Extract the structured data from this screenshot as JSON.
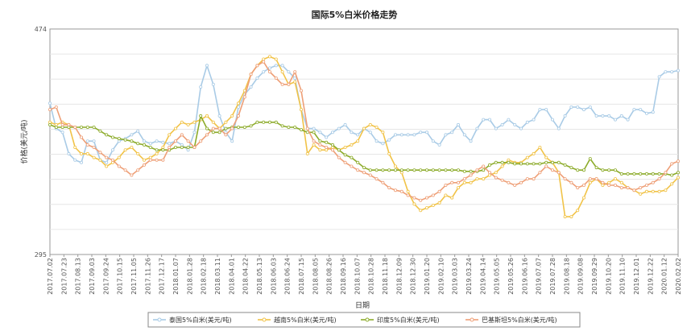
{
  "chart_data": {
    "type": "line",
    "title": "国际5%白米价格走势",
    "xlabel": "日期",
    "ylabel": "价格(美元/吨)",
    "ylim": [
      295,
      474
    ],
    "y_ticks": [
      "474",
      "295"
    ],
    "grid": true,
    "legend_position": "bottom",
    "x_tick_labels": [
      "2017.07.02",
      "2017.07.23",
      "2017.08.13",
      "2017.09.03",
      "2017.09.24",
      "2017.10.15",
      "2017.11.05",
      "2017.11.26",
      "2017.12.17",
      "2018.01.07",
      "2018.01.28",
      "2018.02.18",
      "2018.03.11",
      "2018.04.01",
      "2018.04.22",
      "2018.05.13",
      "2018.06.03",
      "2018.06.24",
      "2018.07.15",
      "2018.08.05",
      "2018.08.26",
      "2018.09.16",
      "2018.10.07",
      "2018.10.28",
      "2018.11.18",
      "2018.12.09",
      "2018.12.30",
      "2019.01.20",
      "2019.02.10",
      "2019.03.03",
      "2019.03.24",
      "2019.04.14",
      "2019.05.05",
      "2019.05.26",
      "2019.06.16",
      "2019.07.07",
      "2019.07.28",
      "2019.08.18",
      "2019.09.08",
      "2019.09.29",
      "2019.10.20",
      "2019.11.10",
      "2019.12.01",
      "2019.12.22",
      "2020.01.12",
      "2020.02.02"
    ],
    "series": [
      {
        "name": "泰国5%白米(美元/吨)",
        "color": "#a9cbe6",
        "values": [
          415,
          395,
          392,
          375,
          370,
          368,
          385,
          385,
          370,
          368,
          378,
          385,
          387,
          390,
          393,
          385,
          383,
          385,
          384,
          383,
          385,
          382,
          378,
          392,
          428,
          445,
          430,
          405,
          392,
          385,
          412,
          422,
          428,
          435,
          440,
          443,
          445,
          445,
          440,
          435,
          410,
          395,
          395,
          392,
          388,
          392,
          395,
          398,
          392,
          390,
          395,
          392,
          385,
          383,
          386,
          390,
          390,
          390,
          390,
          392,
          392,
          385,
          382,
          390,
          392,
          398,
          390,
          385,
          395,
          402,
          402,
          395,
          398,
          402,
          398,
          395,
          400,
          402,
          410,
          410,
          402,
          395,
          405,
          412,
          412,
          410,
          412,
          405,
          405,
          405,
          402,
          405,
          402,
          410,
          410,
          407,
          408,
          436,
          440,
          440,
          441
        ]
      },
      {
        "name": "越南5%白米(美元/吨)",
        "color": "#f1c348",
        "values": [
          400,
          398,
          400,
          398,
          380,
          375,
          375,
          372,
          370,
          365,
          368,
          372,
          378,
          380,
          375,
          370,
          372,
          375,
          380,
          390,
          395,
          400,
          398,
          400,
          402,
          405,
          400,
          395,
          400,
          405,
          415,
          425,
          438,
          445,
          450,
          452,
          450,
          440,
          430,
          432,
          410,
          375,
          382,
          378,
          378,
          380,
          378,
          380,
          382,
          385,
          395,
          398,
          396,
          392,
          375,
          365,
          360,
          345,
          335,
          330,
          332,
          334,
          336,
          342,
          340,
          348,
          352,
          352,
          355,
          355,
          358,
          360,
          365,
          370,
          368,
          368,
          372,
          375,
          380,
          372,
          368,
          360,
          325,
          325,
          330,
          340,
          352,
          355,
          350,
          352,
          355,
          352,
          348,
          346,
          343,
          345,
          345,
          345,
          346,
          351,
          356
        ]
      },
      {
        "name": "印度5%白米(美元/吨)",
        "color": "#8cab2a",
        "values": [
          398,
          396,
          396,
          396,
          396,
          396,
          396,
          396,
          393,
          390,
          388,
          387,
          386,
          385,
          383,
          382,
          380,
          378,
          378,
          378,
          380,
          380,
          380,
          380,
          405,
          395,
          392,
          392,
          395,
          396,
          396,
          396,
          397,
          400,
          400,
          400,
          400,
          397,
          396,
          396,
          394,
          392,
          392,
          385,
          384,
          382,
          378,
          374,
          372,
          368,
          364,
          362,
          362,
          362,
          362,
          362,
          362,
          362,
          362,
          362,
          362,
          362,
          362,
          362,
          362,
          362,
          361,
          361,
          361,
          362,
          366,
          368,
          368,
          368,
          367,
          367,
          367,
          367,
          367,
          368,
          368,
          368,
          366,
          364,
          362,
          362,
          371,
          364,
          362,
          362,
          362,
          359,
          359,
          359,
          359,
          359,
          359,
          359,
          359,
          358,
          360
        ]
      },
      {
        "name": "巴基斯坦5%白米(美元/吨)",
        "color": "#ee9f77",
        "values": [
          410,
          412,
          398,
          398,
          396,
          388,
          382,
          380,
          376,
          372,
          370,
          365,
          362,
          358,
          362,
          366,
          370,
          370,
          370,
          380,
          385,
          390,
          385,
          380,
          385,
          390,
          395,
          395,
          390,
          395,
          405,
          420,
          438,
          445,
          448,
          440,
          435,
          430,
          430,
          440,
          425,
          395,
          385,
          382,
          380,
          378,
          372,
          368,
          365,
          362,
          360,
          358,
          355,
          352,
          348,
          346,
          345,
          342,
          340,
          338,
          340,
          342,
          345,
          350,
          352,
          352,
          355,
          358,
          362,
          365,
          360,
          356,
          354,
          352,
          350,
          352,
          355,
          355,
          360,
          365,
          362,
          360,
          355,
          352,
          348,
          350,
          355,
          355,
          352,
          350,
          350,
          348,
          348,
          346,
          348,
          350,
          352,
          355,
          360,
          367,
          369
        ]
      }
    ]
  }
}
